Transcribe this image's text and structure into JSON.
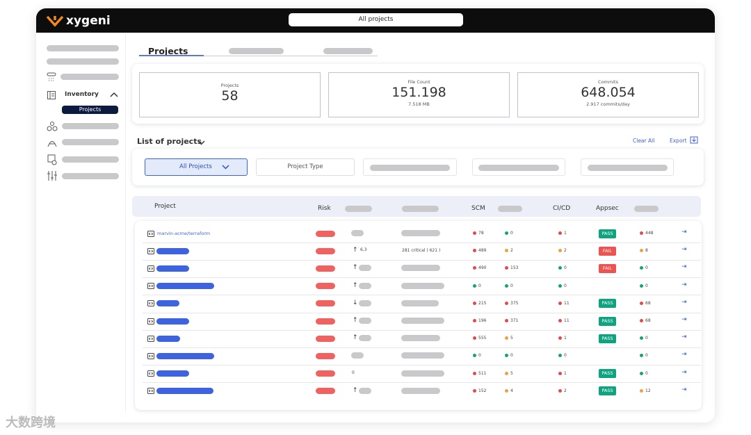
{
  "header": {
    "logo": "xygeni",
    "search": "All projects"
  },
  "sidebar": {
    "inventory": "Inventory",
    "projects": "Projects"
  },
  "tabs": {
    "active": "Projects"
  },
  "stats": [
    {
      "label": "Projects",
      "value": "58"
    },
    {
      "label": "File Count",
      "value": "151.198",
      "sub": "7.518 MB"
    },
    {
      "label": "Commits",
      "value": "648.054",
      "sub": "2.917 commits/day"
    }
  ],
  "list": {
    "title": "List of projects",
    "clear": "Clear All",
    "export": "Export"
  },
  "filters": {
    "all": "All Projects",
    "type": "Project Type"
  },
  "table": {
    "columns": {
      "project": "Project",
      "risk": "Risk",
      "scm": "SCM",
      "cicd": "CI/CD",
      "appsec": "Appsec"
    },
    "rows": [
      {
        "name": "marvin-acme/terraform",
        "trend": null,
        "scm": [
          {
            "v": "78",
            "c": "#e5484d"
          },
          {
            "v": "0",
            "c": "#12a37c"
          }
        ],
        "cicd": {
          "v": "1",
          "c": "#e5484d"
        },
        "appsec": {
          "v": "PASS",
          "c": "#10a37f"
        },
        "last": {
          "v": "448",
          "c": "#e5484d"
        }
      },
      {
        "trend": "up",
        "trend_value": "6,3",
        "critical": "281 critical ( 621 )",
        "scm": [
          {
            "v": "489",
            "c": "#e5484d"
          },
          {
            "v": "2",
            "c": "#f0a040"
          }
        ],
        "cicd": {
          "v": "2",
          "c": "#f0a040"
        },
        "appsec": {
          "v": "FAIL",
          "c": "#ef5350"
        },
        "last": {
          "v": "8",
          "c": "#f0a040"
        }
      },
      {
        "trend": "up",
        "scm": [
          {
            "v": "490",
            "c": "#e5484d"
          },
          {
            "v": "153",
            "c": "#e5484d"
          }
        ],
        "cicd": {
          "v": "0",
          "c": "#12a37c"
        },
        "appsec": {
          "v": "FAIL",
          "c": "#ef5350"
        },
        "last": {
          "v": "0",
          "c": "#12a37c"
        }
      },
      {
        "trend": "up",
        "scm": [
          {
            "v": "0",
            "c": "#12a37c"
          },
          {
            "v": "0",
            "c": "#12a37c"
          }
        ],
        "cicd": {
          "v": "0",
          "c": "#12a37c"
        },
        "last": {
          "v": "0",
          "c": "#12a37c"
        }
      },
      {
        "trend": "down",
        "scm": [
          {
            "v": "215",
            "c": "#e5484d"
          },
          {
            "v": "375",
            "c": "#e5484d"
          }
        ],
        "cicd": {
          "v": "11",
          "c": "#e5484d"
        },
        "appsec": {
          "v": "PASS",
          "c": "#10a37f"
        },
        "last": {
          "v": "68",
          "c": "#e5484d"
        }
      },
      {
        "trend": "up",
        "scm": [
          {
            "v": "196",
            "c": "#e5484d"
          },
          {
            "v": "371",
            "c": "#e5484d"
          }
        ],
        "cicd": {
          "v": "11",
          "c": "#e5484d"
        },
        "appsec": {
          "v": "PASS",
          "c": "#10a37f"
        },
        "last": {
          "v": "68",
          "c": "#e5484d"
        }
      },
      {
        "trend": "up",
        "scm": [
          {
            "v": "555",
            "c": "#e5484d"
          },
          {
            "v": "5",
            "c": "#f0a040"
          }
        ],
        "cicd": {
          "v": "1",
          "c": "#e5484d"
        },
        "appsec": {
          "v": "PASS",
          "c": "#10a37f"
        },
        "last": {
          "v": "0",
          "c": "#12a37c"
        }
      },
      {
        "trend": null,
        "scm": [
          {
            "v": "0",
            "c": "#12a37c"
          },
          {
            "v": "0",
            "c": "#12a37c"
          }
        ],
        "cicd": {
          "v": "0",
          "c": "#12a37c"
        },
        "last": {
          "v": "0",
          "c": "#12a37c"
        }
      },
      {
        "trend": null,
        "trend_value": "0",
        "scm": [
          {
            "v": "511",
            "c": "#e5484d"
          },
          {
            "v": "5",
            "c": "#f0a040"
          }
        ],
        "cicd": {
          "v": "1",
          "c": "#e5484d"
        },
        "appsec": {
          "v": "PASS",
          "c": "#10a37f"
        },
        "last": {
          "v": "0",
          "c": "#12a37c"
        }
      },
      {
        "trend": "up",
        "scm": [
          {
            "v": "152",
            "c": "#e5484d"
          },
          {
            "v": "4",
            "c": "#f0a040"
          }
        ],
        "cicd": {
          "v": "2",
          "c": "#e5484d"
        },
        "appsec": {
          "v": "PASS",
          "c": "#10a37f"
        },
        "last": {
          "v": "12",
          "c": "#f0a040"
        }
      }
    ]
  },
  "watermark": "大数跨境"
}
